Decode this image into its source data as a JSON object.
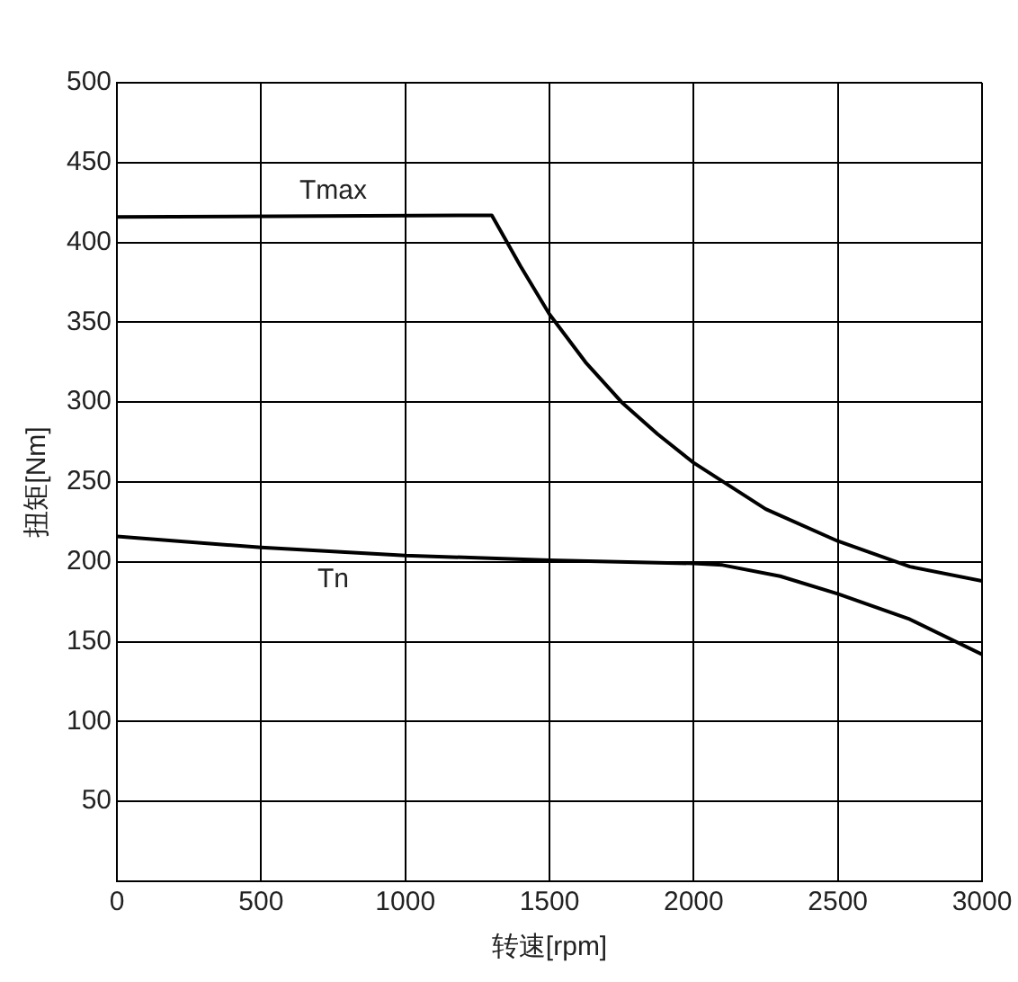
{
  "chart_data": {
    "type": "line",
    "xlabel": "转速[rpm]",
    "ylabel": "扭矩[Nm]",
    "xlim": [
      0,
      3000
    ],
    "xticks": [
      0,
      500,
      1000,
      1500,
      2000,
      2500,
      3000
    ],
    "ylim": [
      0,
      500
    ],
    "yticks": [
      {
        "value": 0,
        "label": null
      },
      50,
      100,
      150,
      200,
      250,
      300,
      350,
      400,
      450,
      500
    ],
    "grid": true,
    "legend": false,
    "marker": "none",
    "line_style": "solid",
    "series": [
      {
        "name": "Tmax",
        "color": "#000000",
        "x": [
          0,
          1300,
          1400,
          1500,
          1625,
          1750,
          1875,
          2000,
          2250,
          2500,
          2750,
          3000
        ],
        "values": [
          416,
          417,
          385,
          355,
          325,
          300,
          280,
          262,
          233,
          213,
          197,
          188
        ]
      },
      {
        "name": "Tn",
        "color": "#000000",
        "x": [
          0,
          500,
          1000,
          1500,
          2000,
          2100,
          2300,
          2500,
          2750,
          3000
        ],
        "values": [
          216,
          209,
          204,
          201,
          199,
          198,
          191,
          180,
          164,
          142
        ]
      }
    ]
  }
}
